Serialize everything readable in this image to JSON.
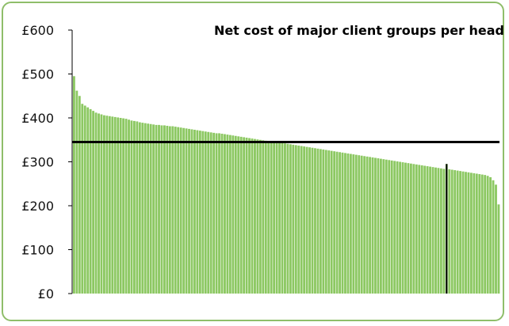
{
  "chart_data": {
    "type": "bar",
    "title": "Net cost of major client groups per head",
    "xlabel": "",
    "ylabel": "",
    "ylim": [
      0,
      600
    ],
    "yticks": [
      "£0",
      "£100",
      "£200",
      "£300",
      "£400",
      "£500",
      "£600"
    ],
    "ytick_values": [
      0,
      100,
      200,
      300,
      400,
      500,
      600
    ],
    "grid": false,
    "legend": "none",
    "bar_color": "#8cc862",
    "reference_line": {
      "value": 345,
      "color": "#000000"
    },
    "highlight_bar_index": 136,
    "highlight_value": 295,
    "series": [
      {
        "values": [
          495,
          462,
          450,
          432,
          428,
          424,
          420,
          416,
          412,
          410,
          408,
          406,
          405,
          404,
          403,
          402,
          401,
          400,
          399,
          398,
          396,
          394,
          393,
          392,
          390,
          389,
          388,
          387,
          386,
          385,
          384,
          384,
          383,
          383,
          382,
          381,
          381,
          380,
          379,
          378,
          377,
          376,
          375,
          374,
          373,
          372,
          371,
          370,
          369,
          368,
          367,
          366,
          365,
          365,
          364,
          363,
          362,
          361,
          360,
          359,
          358,
          357,
          356,
          355,
          354,
          353,
          352,
          351,
          350,
          349,
          348,
          347,
          346,
          345,
          345,
          344,
          343,
          342,
          341,
          340,
          339,
          338,
          337,
          336,
          335,
          334,
          333,
          332,
          331,
          330,
          329,
          328,
          327,
          326,
          325,
          324,
          323,
          322,
          321,
          320,
          319,
          318,
          317,
          316,
          315,
          314,
          313,
          312,
          311,
          310,
          309,
          308,
          307,
          306,
          305,
          304,
          303,
          302,
          301,
          300,
          299,
          298,
          297,
          296,
          295,
          294,
          293,
          292,
          291,
          290,
          289,
          288,
          287,
          286,
          285,
          284,
          295,
          283,
          282,
          281,
          280,
          279,
          278,
          277,
          276,
          275,
          274,
          273,
          272,
          271,
          270,
          268,
          265,
          258,
          248,
          203
        ]
      }
    ]
  }
}
